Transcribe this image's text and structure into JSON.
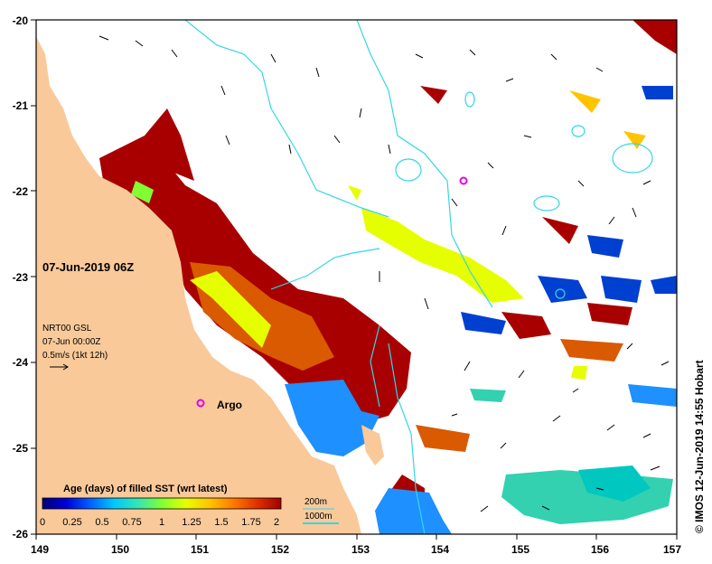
{
  "map": {
    "date_label": "07-Jun-2019 06Z",
    "credit": "© IMOS 12-Jun-2019 14:55 Hobart",
    "colors": {
      "land": "#f9c99a",
      "ocean": "#ffffff",
      "contour": "#33d6e6",
      "frame": "#000000",
      "argo_marker": "#e600e6"
    },
    "lon_ticks": [
      "149",
      "150",
      "151",
      "152",
      "153",
      "154",
      "155",
      "156",
      "157"
    ],
    "lat_ticks": [
      "-20",
      "-21",
      "-22",
      "-23",
      "-24",
      "-25",
      "-26"
    ],
    "argo": {
      "label": "Argo",
      "lon": 151.0,
      "lat": -24.6
    },
    "argo_float_2": {
      "lon": 154.3,
      "lat": -21.9
    }
  },
  "current_key": {
    "line1": "NRT00 GSL",
    "line2": "07-Jun 00:00Z",
    "line3": "0.5m/s (1kt 12h)"
  },
  "contour_key": {
    "c200": "200m",
    "c1000": "1000m"
  },
  "colorbar": {
    "title": "Age (days) of filled SST (wrt latest)",
    "tick_labels": [
      "0",
      "0.25",
      "0.5",
      "0.75",
      "1",
      "1.25",
      "1.5",
      "1.75",
      "2"
    ],
    "colors": [
      "#00007a",
      "#0000d9",
      "#0060ff",
      "#00c8ff",
      "#33e6b3",
      "#80ff33",
      "#e6ff00",
      "#ffc400",
      "#ff7a00",
      "#e03000",
      "#a00000"
    ]
  }
}
